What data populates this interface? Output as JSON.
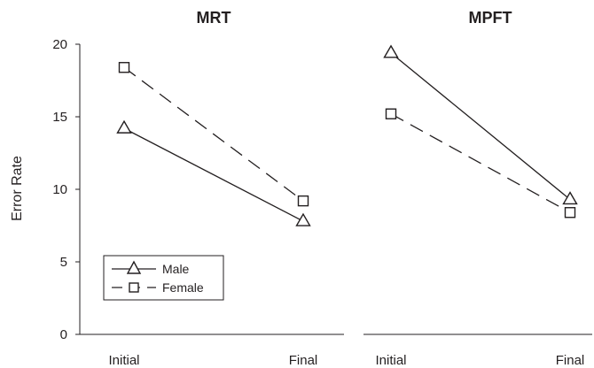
{
  "chart_data": [
    {
      "type": "line",
      "title": "MRT",
      "ylabel": "Error Rate",
      "xlabel": "",
      "categories": [
        "Initial",
        "Final"
      ],
      "ylim": [
        0,
        20
      ],
      "yticks": [
        0,
        5,
        10,
        15,
        20
      ],
      "grid": false,
      "legend": "bottom-left",
      "series": [
        {
          "name": "Male",
          "values": [
            14.2,
            7.8
          ],
          "marker": "triangle",
          "line": "solid",
          "color": "#231f20"
        },
        {
          "name": "Female",
          "values": [
            18.4,
            9.2
          ],
          "marker": "square",
          "line": "dashed",
          "color": "#231f20"
        }
      ]
    },
    {
      "type": "line",
      "title": "MPFT",
      "ylabel": "",
      "xlabel": "",
      "categories": [
        "Initial",
        "Final"
      ],
      "ylim": [
        0,
        20
      ],
      "grid": false,
      "series": [
        {
          "name": "Male",
          "values": [
            19.4,
            9.3
          ],
          "marker": "triangle",
          "line": "solid",
          "color": "#231f20"
        },
        {
          "name": "Female",
          "values": [
            15.2,
            8.4
          ],
          "marker": "square",
          "line": "dashed",
          "color": "#231f20"
        }
      ]
    }
  ]
}
